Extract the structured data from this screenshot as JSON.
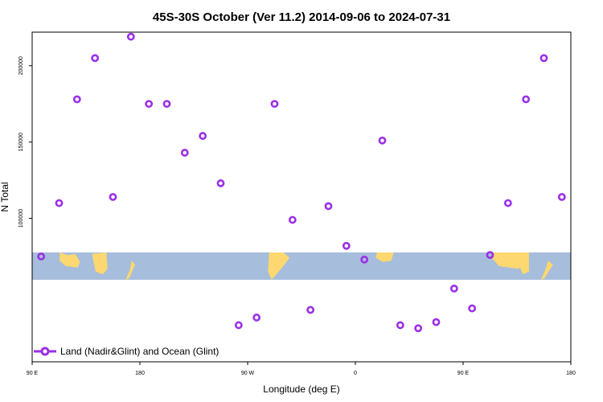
{
  "chart_data": {
    "type": "scatter",
    "title": "45S-30S October (Ver 11.2)   2014-09-06 to 2024-07-31",
    "xlabel": "Longitude (deg E)",
    "ylabel": "N Total",
    "x_ticks": [
      {
        "value": 90,
        "label": "90 E"
      },
      {
        "value": 180,
        "label": "180"
      },
      {
        "value": 270,
        "label": "90 W"
      },
      {
        "value": 360,
        "label": "0"
      },
      {
        "value": 450,
        "label": "90 E"
      },
      {
        "value": 540,
        "label": "180"
      }
    ],
    "y_ticks": [
      {
        "value": 100000,
        "label": "100000"
      },
      {
        "value": 150000,
        "label": "150000"
      },
      {
        "value": 200000,
        "label": "200000"
      }
    ],
    "xlim": [
      90,
      540
    ],
    "ylim": [
      6000,
      222000
    ],
    "grid": false,
    "legend_position": "bottom-left",
    "series": [
      {
        "name": "Land (Nadir&Glint) and Ocean (Glint)",
        "color": "#9b30e6",
        "marker": "open-circle",
        "x": [
          97.5,
          112.5,
          127.5,
          142.5,
          157.5,
          172.5,
          187.5,
          202.5,
          217.5,
          232.5,
          247.5,
          262.5,
          277.5,
          292.5,
          307.5,
          322.5,
          337.5,
          352.5,
          367.5,
          382.5,
          397.5,
          412.5,
          427.5,
          442.5,
          457.5,
          472.5,
          487.5,
          502.5,
          517.5,
          532.5
        ],
        "y": [
          75000,
          110000,
          178000,
          205000,
          114000,
          219000,
          175000,
          175000,
          143000,
          154000,
          123000,
          30000,
          35000,
          175000,
          99000,
          40000,
          108000,
          82000,
          73000,
          151000,
          30000,
          28000,
          32000,
          54000,
          41000,
          76000,
          110000,
          178000,
          205000,
          114000
        ]
      }
    ],
    "map_strip": {
      "description_band": "world map strip 45S-30S",
      "ocean_color": "#a6bddb",
      "land_color": "#fdd870"
    }
  }
}
